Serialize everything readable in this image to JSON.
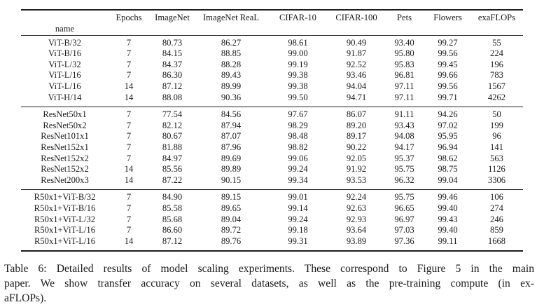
{
  "table": {
    "name_header": "name",
    "columns": [
      "Epochs",
      "ImageNet",
      "ImageNet ReaL",
      "CIFAR-10",
      "CIFAR-100",
      "Pets",
      "Flowers",
      "exaFLOPs"
    ],
    "groups": [
      {
        "rows": [
          {
            "name": "ViT-B/32",
            "values": [
              "7",
              "80.73",
              "86.27",
              "98.61",
              "90.49",
              "93.40",
              "99.27",
              "55"
            ]
          },
          {
            "name": "ViT-B/16",
            "values": [
              "7",
              "84.15",
              "88.85",
              "99.00",
              "91.87",
              "95.80",
              "99.56",
              "224"
            ]
          },
          {
            "name": "ViT-L/32",
            "values": [
              "7",
              "84.37",
              "88.28",
              "99.19",
              "92.52",
              "95.83",
              "99.45",
              "196"
            ]
          },
          {
            "name": "ViT-L/16",
            "values": [
              "7",
              "86.30",
              "89.43",
              "99.38",
              "93.46",
              "96.81",
              "99.66",
              "783"
            ]
          },
          {
            "name": "ViT-L/16",
            "values": [
              "14",
              "87.12",
              "89.99",
              "99.38",
              "94.04",
              "97.11",
              "99.56",
              "1567"
            ]
          },
          {
            "name": "ViT-H/14",
            "values": [
              "14",
              "88.08",
              "90.36",
              "99.50",
              "94.71",
              "97.11",
              "99.71",
              "4262"
            ]
          }
        ]
      },
      {
        "rows": [
          {
            "name": "ResNet50x1",
            "values": [
              "7",
              "77.54",
              "84.56",
              "97.67",
              "86.07",
              "91.11",
              "94.26",
              "50"
            ]
          },
          {
            "name": "ResNet50x2",
            "values": [
              "7",
              "82.12",
              "87.94",
              "98.29",
              "89.20",
              "93.43",
              "97.02",
              "199"
            ]
          },
          {
            "name": "ResNet101x1",
            "values": [
              "7",
              "80.67",
              "87.07",
              "98.48",
              "89.17",
              "94.08",
              "95.95",
              "96"
            ]
          },
          {
            "name": "ResNet152x1",
            "values": [
              "7",
              "81.88",
              "87.96",
              "98.82",
              "90.22",
              "94.17",
              "96.94",
              "141"
            ]
          },
          {
            "name": "ResNet152x2",
            "values": [
              "7",
              "84.97",
              "89.69",
              "99.06",
              "92.05",
              "95.37",
              "98.62",
              "563"
            ]
          },
          {
            "name": "ResNet152x2",
            "values": [
              "14",
              "85.56",
              "89.89",
              "99.24",
              "91.92",
              "95.75",
              "98.75",
              "1126"
            ]
          },
          {
            "name": "ResNet200x3",
            "values": [
              "14",
              "87.22",
              "90.15",
              "99.34",
              "93.53",
              "96.32",
              "99.04",
              "3306"
            ]
          }
        ]
      },
      {
        "rows": [
          {
            "name": "R50x1+ViT-B/32",
            "values": [
              "7",
              "84.90",
              "89.15",
              "99.01",
              "92.24",
              "95.75",
              "99.46",
              "106"
            ]
          },
          {
            "name": "R50x1+ViT-B/16",
            "values": [
              "7",
              "85.58",
              "89.65",
              "99.14",
              "92.63",
              "96.65",
              "99.40",
              "274"
            ]
          },
          {
            "name": "R50x1+ViT-L/32",
            "values": [
              "7",
              "85.68",
              "89.04",
              "99.24",
              "92.93",
              "96.97",
              "99.43",
              "246"
            ]
          },
          {
            "name": "R50x1+ViT-L/16",
            "values": [
              "7",
              "86.60",
              "89.72",
              "99.18",
              "93.64",
              "97.03",
              "99.40",
              "859"
            ]
          },
          {
            "name": "R50x1+ViT-L/16",
            "values": [
              "14",
              "87.12",
              "89.76",
              "99.31",
              "93.89",
              "97.36",
              "99.11",
              "1668"
            ]
          }
        ]
      }
    ]
  },
  "caption": {
    "lines": [
      "Table 6: Detailed results of model scaling experiments. These correspond to Figure 5 in the main",
      "paper. We show transfer accuracy on several datasets, as well as the pre-training compute (in ex-",
      "aFLOPs)."
    ]
  }
}
